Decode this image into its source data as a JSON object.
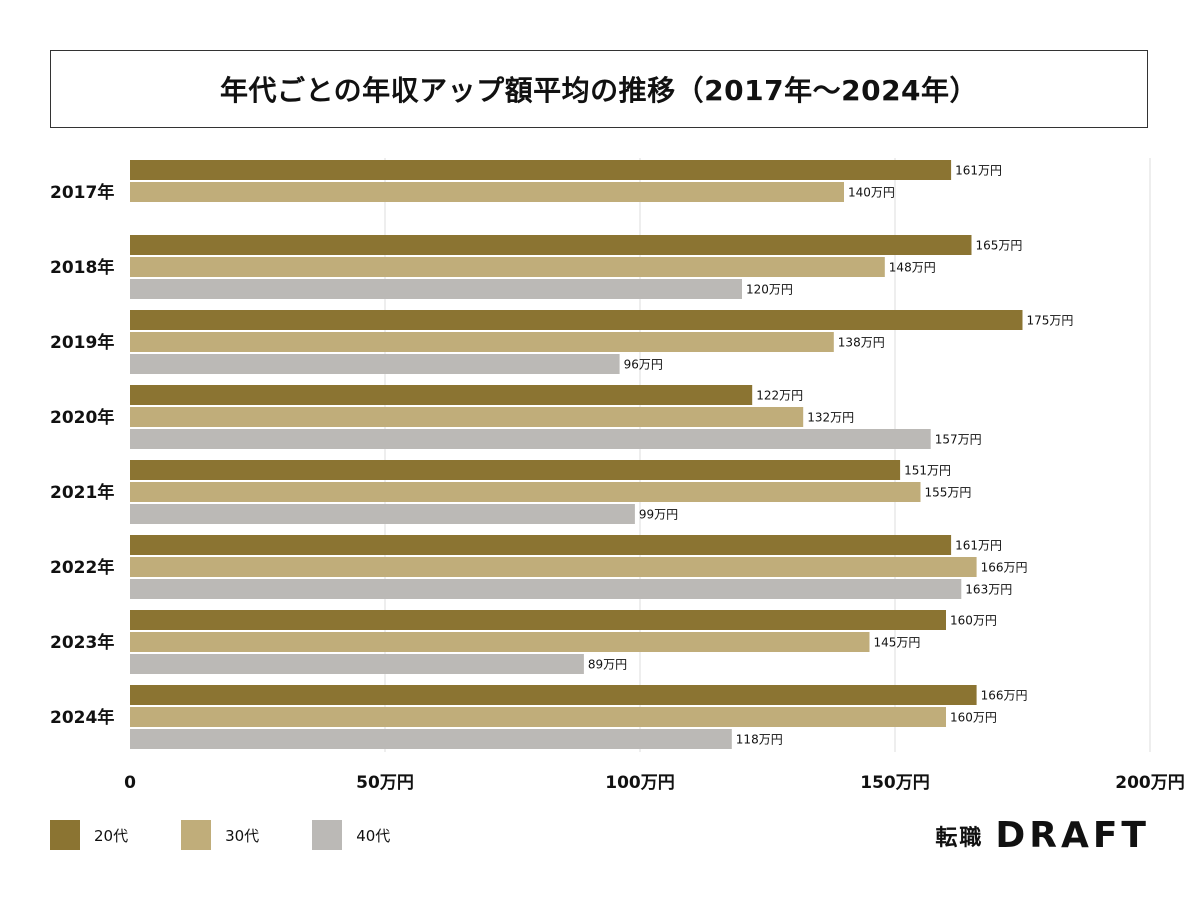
{
  "chart_data": {
    "type": "bar",
    "orientation": "horizontal",
    "title": "年代ごとの年収アップ額平均の推移（2017年〜2024年）",
    "categories": [
      "2017年",
      "2018年",
      "2019年",
      "2020年",
      "2021年",
      "2022年",
      "2023年",
      "2024年"
    ],
    "series": [
      {
        "name": "20代",
        "color": "#8b7432",
        "values": [
          161,
          165,
          175,
          122,
          151,
          161,
          160,
          166
        ]
      },
      {
        "name": "30代",
        "color": "#c0ad7a",
        "values": [
          140,
          148,
          138,
          132,
          155,
          166,
          145,
          160
        ]
      },
      {
        "name": "40代",
        "color": "#bbb9b6",
        "values": [
          null,
          120,
          96,
          157,
          99,
          163,
          89,
          118
        ]
      }
    ],
    "value_suffix": "万円",
    "xlim": [
      0,
      200
    ],
    "x_ticks": [
      {
        "value": 0,
        "label": "0"
      },
      {
        "value": 50,
        "label": "50万円"
      },
      {
        "value": 100,
        "label": "100万円"
      },
      {
        "value": 150,
        "label": "150万円"
      },
      {
        "value": 200,
        "label": "200万円"
      }
    ],
    "grid": true,
    "legend_position": "bottom-left"
  },
  "brand": {
    "jp": "転職",
    "en": "DRAFT"
  }
}
